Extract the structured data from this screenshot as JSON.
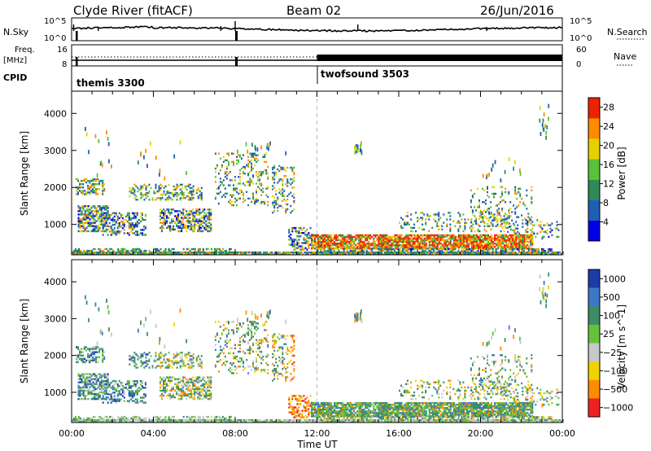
{
  "header": {
    "station": "Clyde River (fitACF)",
    "beam": "Beam 02",
    "date": "26/Jun/2016"
  },
  "strip": {
    "left_label_top": "N.Sky",
    "left_label_freq_1": "Freq.",
    "left_label_freq_2": "[MHz]",
    "left_label_cpid": "CPID",
    "right_label_top": "N.Search",
    "right_label_nave": "Nave",
    "sky_ticks": [
      "10^5",
      "10^0"
    ],
    "search_ticks": [
      "10^5",
      "10^0"
    ],
    "freq_ticks": [
      "16",
      "8"
    ],
    "nave_ticks": [
      "60",
      "0"
    ],
    "cpid_modes": [
      {
        "name": "themis 3300",
        "start_hour": 0
      },
      {
        "name": "twofsound 3503",
        "start_hour": 12
      }
    ]
  },
  "chart_data": [
    {
      "type": "heatmap",
      "panel": "power",
      "ylabel": "Slant Range [km]",
      "xlabel": "",
      "colorbar_label": "Power [dB]",
      "x_range_hours": [
        0,
        24
      ],
      "y_range_km": [
        180,
        4600
      ],
      "y_ticks": [
        "1000",
        "2000",
        "3000",
        "4000"
      ],
      "colorbar_ticks": [
        "4",
        "8",
        "12",
        "16",
        "20",
        "24",
        "28"
      ],
      "colorbar_range": [
        0,
        30
      ],
      "colors": [
        "#0000e6",
        "#1e5fb4",
        "#2e8b57",
        "#59c238",
        "#e6d100",
        "#ff8c00",
        "#ee2200"
      ]
    },
    {
      "type": "heatmap",
      "panel": "velocity",
      "ylabel": "Slant Range [km]",
      "xlabel": "Time UT",
      "colorbar_label": "Velocity [m s^-1]",
      "x_range_hours": [
        0,
        24
      ],
      "y_range_km": [
        180,
        4600
      ],
      "y_ticks": [
        "1000",
        "2000",
        "3000",
        "4000"
      ],
      "x_ticks": [
        "00:00",
        "04:00",
        "08:00",
        "12:00",
        "16:00",
        "20:00",
        "00:00"
      ],
      "colorbar_ticks": [
        "1000",
        "500",
        "100",
        "25",
        "−25",
        "−100",
        "−500",
        "−1000"
      ],
      "colors": [
        "#1e3ca8",
        "#3c78c8",
        "#3c8c64",
        "#66c23a",
        "#c8c8c8",
        "#f0d200",
        "#ff8c00",
        "#ee2222"
      ]
    }
  ]
}
